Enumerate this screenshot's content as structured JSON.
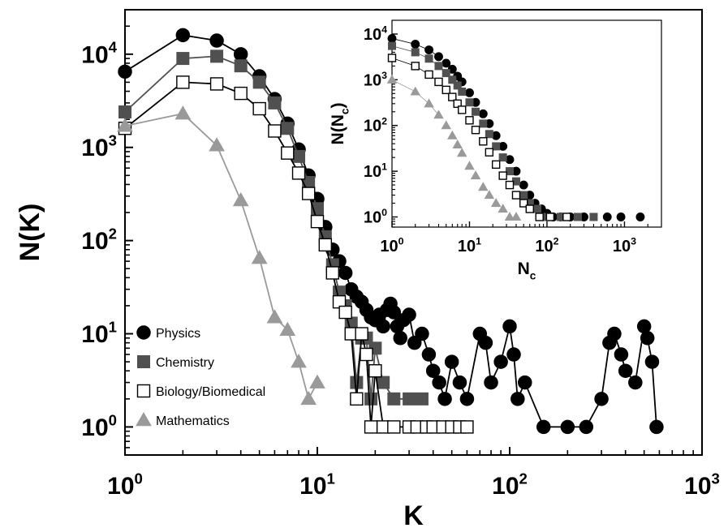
{
  "chart_data": [
    {
      "type": "line",
      "xlabel": "K",
      "ylabel": "N(K)",
      "xscale": "log",
      "yscale": "log",
      "xlim": [
        1,
        1000
      ],
      "ylim": [
        0.5,
        30000
      ],
      "x_ticks": [
        {
          "mantissa": "10",
          "exp": "0"
        },
        {
          "mantissa": "10",
          "exp": "1"
        },
        {
          "mantissa": "10",
          "exp": "2"
        },
        {
          "mantissa": "10",
          "exp": "3"
        }
      ],
      "y_ticks": [
        {
          "mantissa": "10",
          "exp": "0"
        },
        {
          "mantissa": "10",
          "exp": "1"
        },
        {
          "mantissa": "10",
          "exp": "2"
        },
        {
          "mantissa": "10",
          "exp": "3"
        },
        {
          "mantissa": "10",
          "exp": "4"
        }
      ],
      "legend_position": "bottom-left",
      "series": [
        {
          "name": "Physics",
          "marker": "circle-filled",
          "color": "#000000",
          "x": [
            1,
            2,
            3,
            4,
            5,
            6,
            7,
            8,
            9,
            10,
            11,
            12,
            13,
            14,
            15,
            16,
            17,
            18,
            19,
            20,
            21,
            22,
            23,
            24,
            25,
            26,
            27,
            28,
            30,
            32,
            35,
            38,
            40,
            43,
            46,
            50,
            55,
            60,
            70,
            75,
            80,
            90,
            100,
            105,
            110,
            120,
            150,
            200,
            250,
            300,
            330,
            350,
            380,
            400,
            450,
            500,
            520,
            550,
            580
          ],
          "y": [
            6500,
            16000,
            14000,
            10000,
            5800,
            3300,
            1800,
            950,
            500,
            280,
            140,
            80,
            60,
            45,
            30,
            25,
            22,
            18,
            15,
            14,
            16,
            12,
            18,
            21,
            17,
            12,
            9,
            14,
            16,
            8,
            10,
            6,
            4,
            3,
            2,
            5,
            3,
            2,
            10,
            8,
            3,
            5,
            12,
            6,
            2,
            3,
            1,
            1,
            1,
            2,
            8,
            10,
            6,
            4,
            3,
            12,
            9,
            5,
            1
          ]
        },
        {
          "name": "Chemistry",
          "marker": "square-filled",
          "color": "#505050",
          "x": [
            1,
            2,
            3,
            4,
            5,
            6,
            7,
            8,
            9,
            10,
            11,
            12,
            13,
            14,
            15,
            16,
            17,
            18,
            19,
            20,
            22,
            25,
            30,
            35
          ],
          "y": [
            2400,
            9000,
            9500,
            7500,
            5000,
            3000,
            1600,
            800,
            420,
            220,
            110,
            55,
            28,
            20,
            13,
            3,
            9,
            9,
            2,
            7,
            3,
            2,
            2,
            2
          ]
        },
        {
          "name": "Biology/Biomedical",
          "marker": "square-open",
          "color": "#000000",
          "x": [
            1,
            2,
            3,
            4,
            5,
            6,
            7,
            8,
            9,
            10,
            11,
            12,
            13,
            14,
            15,
            16,
            17,
            18,
            19,
            20,
            22,
            25,
            30,
            33,
            37,
            40,
            45,
            50,
            55,
            60
          ],
          "y": [
            1600,
            5000,
            4800,
            3800,
            2600,
            1500,
            870,
            530,
            320,
            160,
            90,
            45,
            22,
            17,
            10,
            2,
            10,
            6,
            1,
            4,
            1,
            1,
            1,
            1,
            1,
            1,
            1,
            1,
            1,
            1
          ]
        },
        {
          "name": "Mathematics",
          "marker": "triangle-filled",
          "color": "#9a9a9a",
          "x": [
            1,
            2,
            3,
            4,
            5,
            6,
            7,
            8,
            9,
            10
          ],
          "y": [
            1700,
            2300,
            1050,
            270,
            65,
            15,
            11,
            5,
            2,
            3
          ]
        }
      ]
    },
    {
      "type": "scatter",
      "position": "inset-top-right",
      "xlabel": "N",
      "xlabel_subscript": "c",
      "ylabel": "N(N",
      "ylabel_subscript": "c",
      "ylabel_suffix": ")",
      "xscale": "log",
      "yscale": "log",
      "xlim": [
        1,
        3000
      ],
      "ylim": [
        0.6,
        20000
      ],
      "x_ticks": [
        {
          "mantissa": "10",
          "exp": "0"
        },
        {
          "mantissa": "10",
          "exp": "1"
        },
        {
          "mantissa": "10",
          "exp": "2"
        },
        {
          "mantissa": "10",
          "exp": "3"
        }
      ],
      "y_ticks": [
        {
          "mantissa": "10",
          "exp": "0"
        },
        {
          "mantissa": "10",
          "exp": "1"
        },
        {
          "mantissa": "10",
          "exp": "2"
        },
        {
          "mantissa": "10",
          "exp": "3"
        },
        {
          "mantissa": "10",
          "exp": "4"
        }
      ],
      "series": [
        {
          "name": "Physics",
          "marker": "circle-filled",
          "color": "#000000",
          "x": [
            1,
            2,
            3,
            4,
            5,
            6,
            7,
            8,
            10,
            12,
            15,
            18,
            22,
            27,
            33,
            40,
            50,
            60,
            70,
            85,
            100,
            120,
            150,
            200,
            300,
            600,
            900,
            1600
          ],
          "y": [
            8000,
            6000,
            4500,
            3200,
            2300,
            1700,
            1200,
            900,
            520,
            320,
            180,
            110,
            60,
            35,
            18,
            10,
            5,
            3,
            2,
            1.5,
            1.2,
            1,
            1,
            1,
            1,
            1,
            1,
            1
          ]
        },
        {
          "name": "Chemistry",
          "marker": "square-filled",
          "color": "#505050",
          "x": [
            1,
            2,
            3,
            4,
            5,
            6,
            7,
            8,
            10,
            12,
            15,
            18,
            22,
            27,
            33,
            40,
            50,
            60,
            75,
            100,
            150,
            250,
            400
          ],
          "y": [
            5500,
            4000,
            2900,
            2000,
            1400,
            1000,
            750,
            550,
            320,
            200,
            110,
            65,
            35,
            20,
            10,
            6,
            3,
            2,
            1.5,
            1,
            1,
            1,
            1
          ]
        },
        {
          "name": "Biology/Biomedical",
          "marker": "square-open",
          "color": "#000000",
          "x": [
            1,
            2,
            3,
            4,
            5,
            6,
            7,
            8,
            10,
            12,
            15,
            18,
            22,
            27,
            33,
            40,
            50,
            60,
            80,
            110,
            180
          ],
          "y": [
            3000,
            2000,
            1300,
            900,
            600,
            420,
            300,
            220,
            130,
            80,
            45,
            26,
            14,
            8,
            5,
            3,
            2,
            1.5,
            1,
            1,
            1
          ]
        },
        {
          "name": "Mathematics",
          "marker": "triangle-filled",
          "color": "#9a9a9a",
          "x": [
            1,
            2,
            3,
            4,
            5,
            6,
            7,
            8,
            10,
            12,
            15,
            18,
            22,
            27,
            33,
            40
          ],
          "y": [
            1000,
            550,
            300,
            170,
            100,
            60,
            38,
            25,
            13,
            8,
            4.5,
            3,
            2,
            1.5,
            1,
            1
          ]
        }
      ]
    }
  ]
}
